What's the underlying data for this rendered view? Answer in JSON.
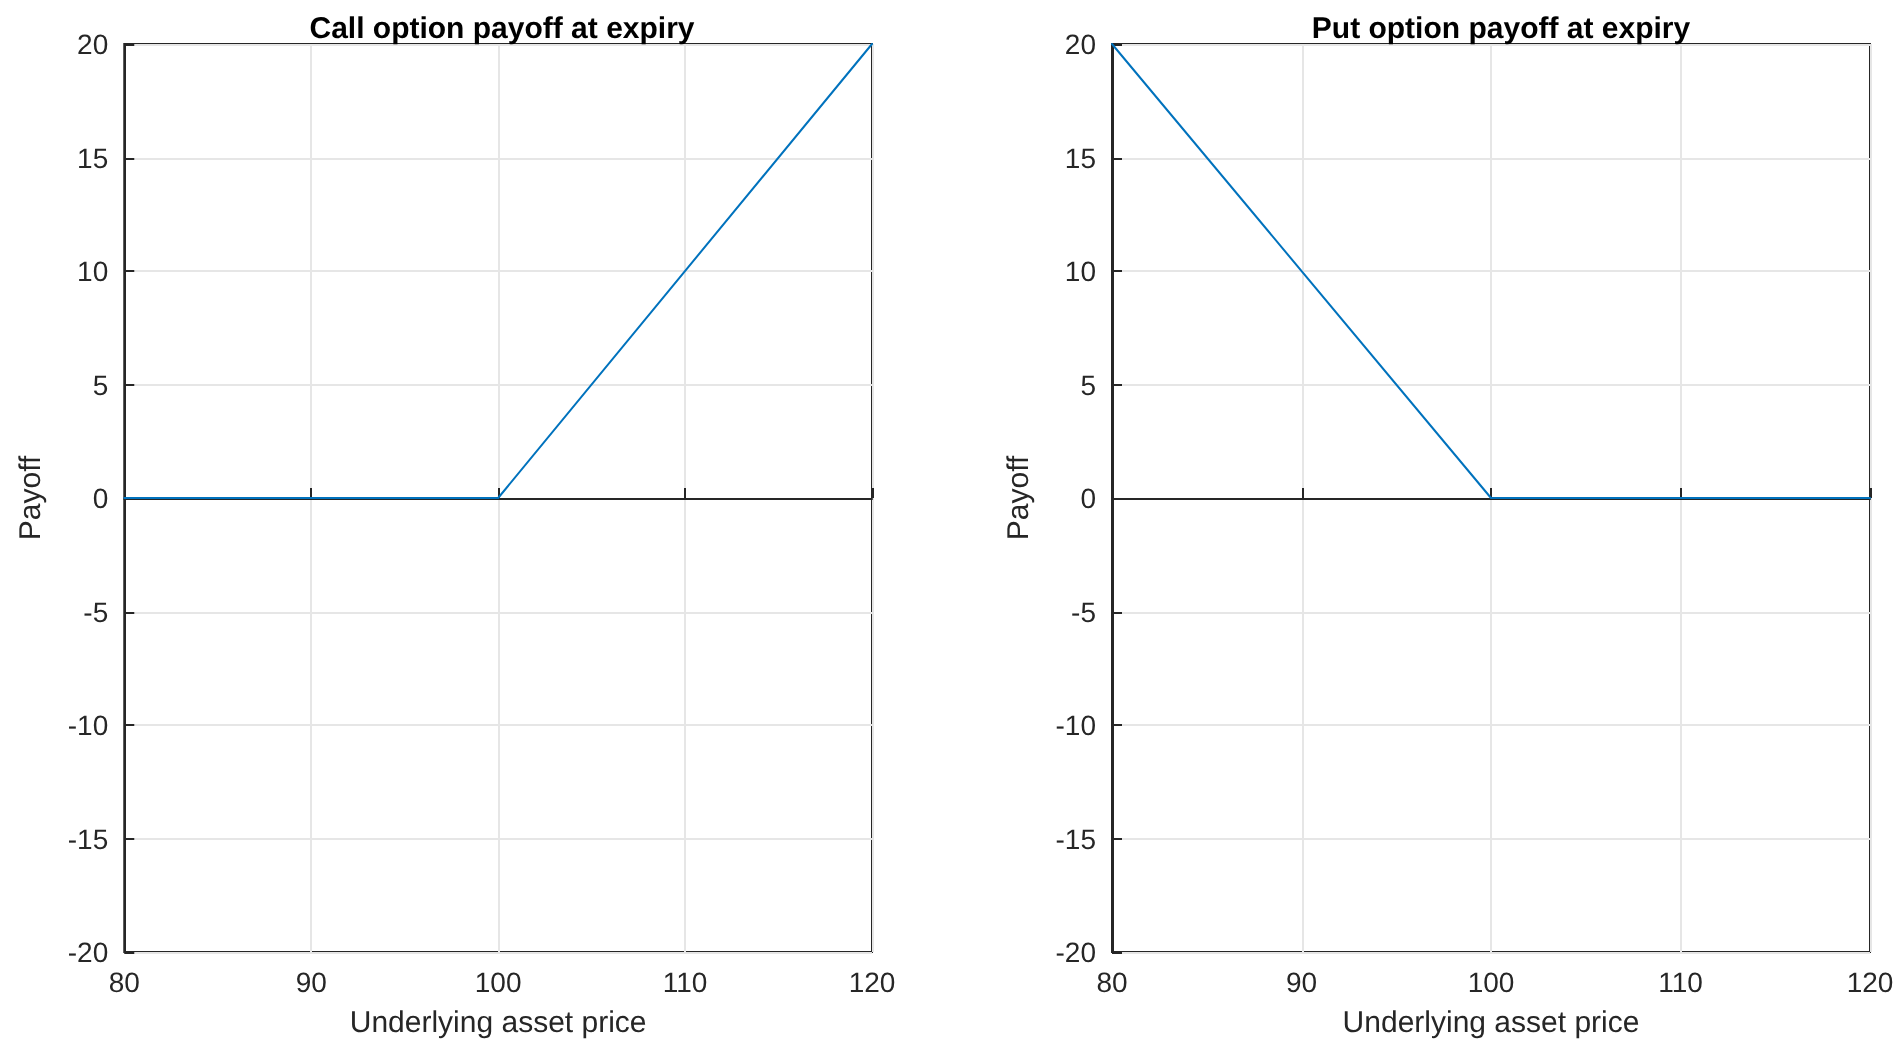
{
  "chart_data": [
    {
      "type": "line",
      "title": "Call option payoff at expiry",
      "xlabel": "Underlying asset price",
      "ylabel": "Payoff",
      "x": [
        80,
        100,
        120
      ],
      "values": [
        0,
        0,
        20
      ],
      "color": "#0072bd",
      "xlim": [
        80,
        120
      ],
      "xticks": [
        80,
        90,
        100,
        110,
        120
      ],
      "ylim": [
        -20,
        20
      ],
      "yticks": [
        -20,
        -15,
        -10,
        -5,
        0,
        5,
        10,
        15,
        20
      ],
      "grid": true,
      "marker": "none",
      "line_style": "solid"
    },
    {
      "type": "line",
      "title": "Put option payoff at expiry",
      "xlabel": "Underlying asset price",
      "ylabel": "Payoff",
      "x": [
        80,
        100,
        120
      ],
      "values": [
        20,
        0,
        0
      ],
      "color": "#0072bd",
      "xlim": [
        80,
        120
      ],
      "xticks": [
        80,
        90,
        100,
        110,
        120
      ],
      "ylim": [
        -20,
        20
      ],
      "yticks": [
        -20,
        -15,
        -10,
        -5,
        0,
        5,
        10,
        15,
        20
      ],
      "grid": true,
      "marker": "none",
      "line_style": "solid"
    }
  ]
}
